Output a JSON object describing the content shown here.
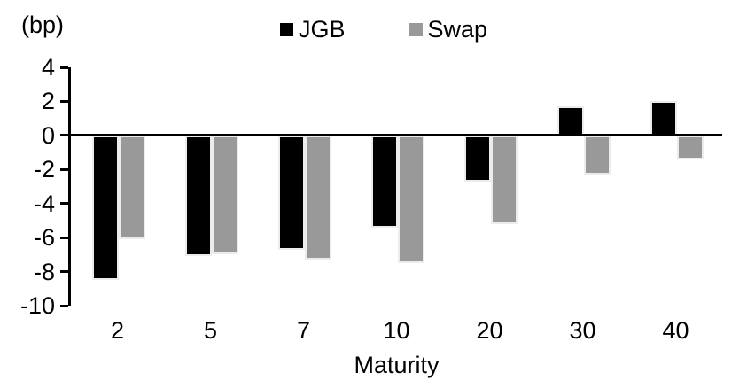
{
  "unit_label": "(bp)",
  "xaxis_title": "Maturity",
  "colors": {
    "jgb": "#000000",
    "swap": "#999999"
  },
  "chart_data": {
    "type": "bar",
    "title": "",
    "xlabel": "Maturity",
    "ylabel": "(bp)",
    "categories": [
      "2",
      "5",
      "7",
      "10",
      "20",
      "30",
      "40"
    ],
    "series": [
      {
        "name": "JGB",
        "color": "#000000",
        "values": [
          -8.5,
          -7.1,
          -6.7,
          -5.4,
          -2.7,
          1.7,
          2.0
        ]
      },
      {
        "name": "Swap",
        "color": "#999999",
        "values": [
          -6.1,
          -7.0,
          -7.3,
          -7.5,
          -5.2,
          -2.3,
          -1.4
        ]
      }
    ],
    "ylim": [
      -10,
      4
    ],
    "yticks": [
      4,
      2,
      0,
      -2,
      -4,
      -6,
      -8,
      -10
    ],
    "grid": false,
    "legend_position": "top-center"
  }
}
